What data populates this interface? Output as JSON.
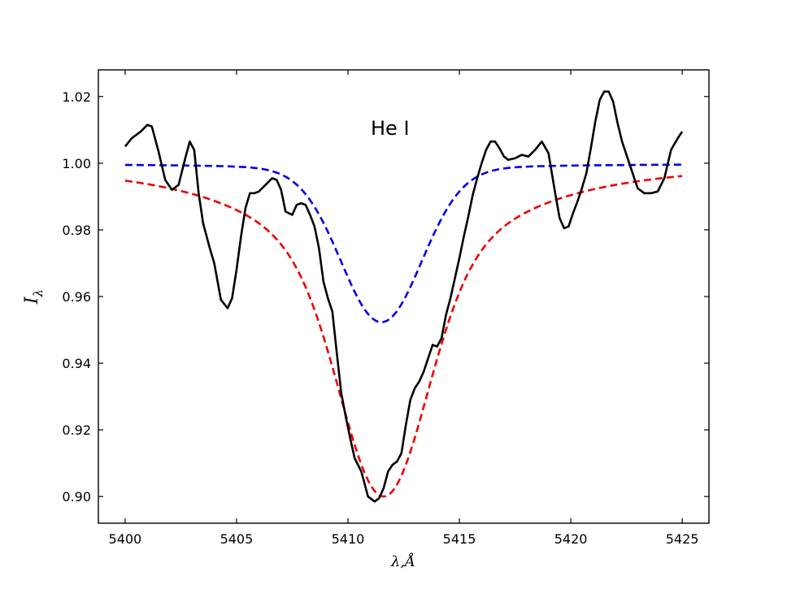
{
  "chart_data": {
    "type": "line",
    "title": "",
    "annotation": "He I",
    "xlabel": "λ,Å",
    "ylabel_main": "I",
    "ylabel_sub": "λ",
    "xlim": [
      5398.8,
      5426.2
    ],
    "ylim": [
      0.892,
      1.028
    ],
    "xticks": [
      5400,
      5405,
      5410,
      5415,
      5420,
      5425
    ],
    "yticks": [
      0.9,
      0.92,
      0.94,
      0.96,
      0.98,
      1.0,
      1.02
    ],
    "ytick_labels": [
      "0.90",
      "0.92",
      "0.94",
      "0.96",
      "0.98",
      "1.00",
      "1.02"
    ],
    "grid": false,
    "series": [
      {
        "color": "#000000",
        "style": "solid",
        "x": [
          5400.0,
          5400.3,
          5400.7,
          5401.0,
          5401.2,
          5401.5,
          5401.8,
          5402.1,
          5402.4,
          5402.7,
          5402.9,
          5403.1,
          5403.3,
          5403.5,
          5403.8,
          5404.0,
          5404.3,
          5404.6,
          5404.8,
          5405.0,
          5405.2,
          5405.4,
          5405.6,
          5405.8,
          5406.0,
          5406.3,
          5406.6,
          5406.8,
          5407.0,
          5407.2,
          5407.5,
          5407.7,
          5407.9,
          5408.1,
          5408.3,
          5408.5,
          5408.7,
          5408.9,
          5409.1,
          5409.3,
          5409.5,
          5409.7,
          5409.9,
          5410.1,
          5410.3,
          5410.6,
          5410.9,
          5411.2,
          5411.4,
          5411.6,
          5411.8,
          5412.0,
          5412.2,
          5412.4,
          5412.6,
          5412.8,
          5413.0,
          5413.2,
          5413.4,
          5413.6,
          5413.8,
          5414.0,
          5414.2,
          5414.4,
          5414.6,
          5414.8,
          5415.0,
          5415.2,
          5415.4,
          5415.6,
          5415.8,
          5416.0,
          5416.2,
          5416.4,
          5416.6,
          5416.8,
          5417.0,
          5417.2,
          5417.5,
          5417.8,
          5418.1,
          5418.4,
          5418.7,
          5419.0,
          5419.3,
          5419.5,
          5419.7,
          5419.9,
          5420.1,
          5420.3,
          5420.5,
          5420.7,
          5420.9,
          5421.1,
          5421.3,
          5421.5,
          5421.7,
          5421.9,
          5422.1,
          5422.3,
          5422.5,
          5422.7,
          5423.0,
          5423.3,
          5423.6,
          5423.9,
          5424.2,
          5424.5,
          5424.8,
          5425.0
        ],
        "y": [
          1.005,
          1.0075,
          1.0095,
          1.0115,
          1.011,
          1.0035,
          0.995,
          0.992,
          0.9935,
          1.0015,
          1.0065,
          1.004,
          0.991,
          0.982,
          0.9745,
          0.97,
          0.959,
          0.9565,
          0.9595,
          0.968,
          0.978,
          0.9865,
          0.991,
          0.991,
          0.9915,
          0.9935,
          0.9955,
          0.995,
          0.992,
          0.9855,
          0.9845,
          0.9875,
          0.988,
          0.9875,
          0.9845,
          0.981,
          0.9745,
          0.9645,
          0.9595,
          0.9555,
          0.943,
          0.931,
          0.924,
          0.9175,
          0.9115,
          0.9075,
          0.9,
          0.8985,
          0.8995,
          0.9025,
          0.9075,
          0.9095,
          0.9105,
          0.913,
          0.9215,
          0.929,
          0.9325,
          0.9345,
          0.9375,
          0.9415,
          0.9455,
          0.945,
          0.9475,
          0.9545,
          0.9595,
          0.9655,
          0.9715,
          0.978,
          0.984,
          0.9905,
          0.9955,
          1.0,
          1.004,
          1.0065,
          1.0065,
          1.0045,
          1.002,
          1.001,
          1.0015,
          1.0025,
          1.002,
          1.004,
          1.0065,
          1.003,
          0.991,
          0.9835,
          0.9805,
          0.981,
          0.985,
          0.9885,
          0.9925,
          0.997,
          1.0045,
          1.0125,
          1.019,
          1.0215,
          1.0215,
          1.0185,
          1.012,
          1.0065,
          1.0025,
          0.9985,
          0.9925,
          0.991,
          0.991,
          0.9915,
          0.9955,
          1.004,
          1.0075,
          1.0095
        ]
      },
      {
        "color": "#0000ee",
        "style": "dashed",
        "model": {
          "center": 5411.5,
          "depth": 0.0475,
          "sigma": 1.8,
          "gamma": 0.05,
          "base": 0.9998
        }
      },
      {
        "color": "#ee0000",
        "style": "dashed",
        "model": {
          "center": 5411.6,
          "depth": 0.101,
          "sigma": 1.85,
          "gamma": 0.45,
          "base": 1.001
        }
      }
    ]
  }
}
